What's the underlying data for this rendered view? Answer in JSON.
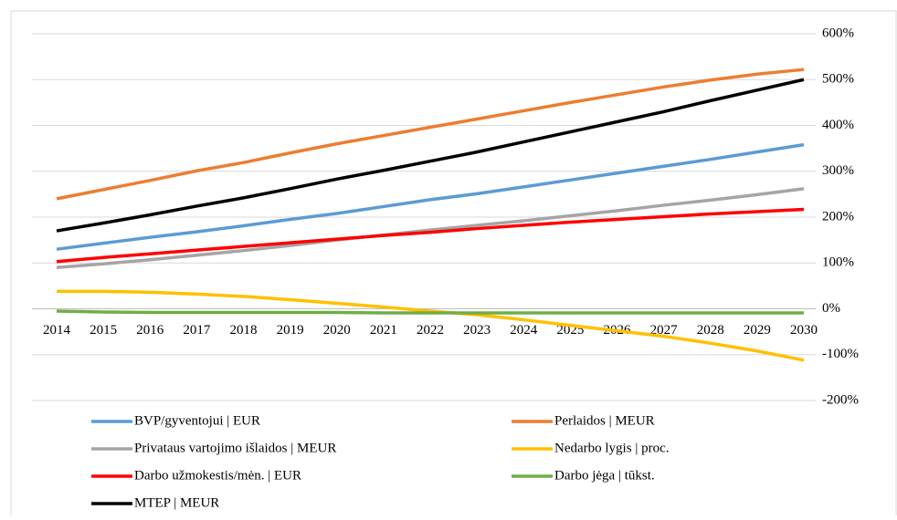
{
  "chart_data": {
    "type": "line",
    "categories": [
      "2014",
      "2015",
      "2016",
      "2017",
      "2018",
      "2019",
      "2020",
      "2021",
      "2022",
      "2023",
      "2024",
      "2025",
      "2026",
      "2027",
      "2028",
      "2029",
      "2030"
    ],
    "series": [
      {
        "name": "BVP/gyventojui | EUR",
        "color": "#5b9bd5",
        "values": [
          130,
          143,
          156,
          168,
          181,
          195,
          208,
          223,
          238,
          251,
          266,
          281,
          296,
          311,
          326,
          342,
          358
        ]
      },
      {
        "name": "Perlaidos | MEUR",
        "color": "#ed7d31",
        "values": [
          240,
          260,
          280,
          301,
          319,
          340,
          360,
          378,
          396,
          414,
          432,
          450,
          467,
          484,
          499,
          512,
          522
        ]
      },
      {
        "name": "Privataus vartojimo išlaidos | MEUR",
        "color": "#a5a5a5",
        "values": [
          90,
          98,
          107,
          117,
          127,
          138,
          150,
          161,
          172,
          182,
          192,
          203,
          214,
          226,
          237,
          249,
          262
        ]
      },
      {
        "name": "Nedarbo lygis | proc.",
        "color": "#ffc000",
        "values": [
          38,
          38,
          36,
          32,
          27,
          20,
          12,
          4,
          -5,
          -13,
          -24,
          -36,
          -48,
          -60,
          -75,
          -92,
          -112
        ]
      },
      {
        "name": "Darbo užmokestis/mėn. | EUR",
        "color": "#ff0000",
        "values": [
          103,
          112,
          120,
          128,
          136,
          144,
          152,
          160,
          167,
          175,
          182,
          189,
          195,
          201,
          207,
          212,
          217
        ]
      },
      {
        "name": "Darbo jėga | tūkst.",
        "color": "#70ad47",
        "values": [
          -5,
          -7,
          -8,
          -8,
          -8,
          -8,
          -8,
          -9,
          -9,
          -9,
          -9,
          -9,
          -9,
          -9,
          -9,
          -9,
          -9
        ]
      },
      {
        "name": "MTEP | MEUR",
        "color": "#000000",
        "values": [
          170,
          187,
          205,
          224,
          242,
          262,
          283,
          302,
          322,
          342,
          364,
          386,
          408,
          430,
          454,
          477,
          500
        ]
      }
    ],
    "ylim": [
      -200,
      600
    ],
    "yticks": [
      {
        "value": -200,
        "label": "-200%"
      },
      {
        "value": -100,
        "label": "-100%"
      },
      {
        "value": 0,
        "label": "0%"
      },
      {
        "value": 100,
        "label": "100%"
      },
      {
        "value": 200,
        "label": "200%"
      },
      {
        "value": 300,
        "label": "300%"
      },
      {
        "value": 400,
        "label": "400%"
      },
      {
        "value": 500,
        "label": "500%"
      },
      {
        "value": 600,
        "label": "600%"
      }
    ],
    "grid": true,
    "legend": "bottom"
  }
}
